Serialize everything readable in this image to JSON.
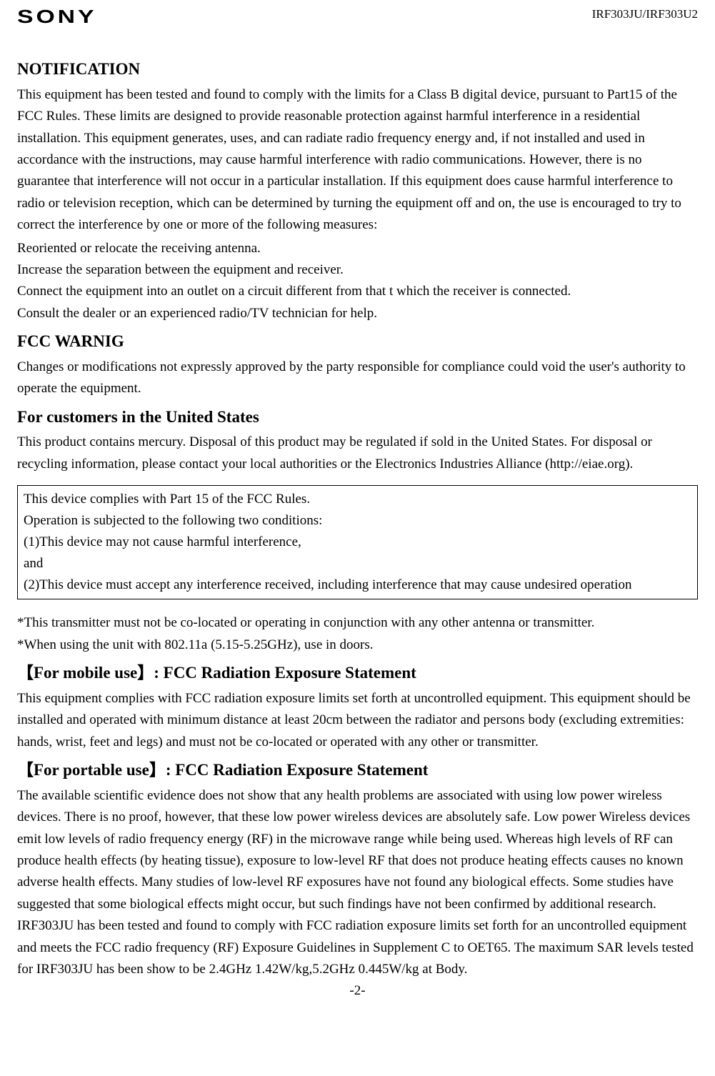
{
  "header": {
    "logo": "SONY",
    "model": "IRF303JU/IRF303U2"
  },
  "sections": {
    "notification": {
      "heading": "NOTIFICATION",
      "body1": "This equipment has been tested and found to comply with the limits for a Class B digital device, pursuant to Part15 of the FCC Rules. These limits are designed to provide reasonable protection against harmful interference in a residential installation. This equipment generates, uses, and can radiate radio frequency energy and, if not installed and used in accordance with the instructions, may cause harmful interference with radio communications. However, there is no guarantee that interference will not occur in a particular installation. If this equipment does cause harmful interference to radio or television reception, which can be determined by turning the equipment off and on, the use is encouraged to try to correct the interference by one or more of the following measures:",
      "m1": "Reoriented or relocate the receiving antenna.",
      "m2": "Increase the separation between the equipment and receiver.",
      "m3": "Connect the equipment into an outlet on a circuit different from that t which the receiver is connected.",
      "m4": "Consult the dealer or an experienced radio/TV technician for help."
    },
    "fcc_warnig": {
      "heading": "FCC WARNIG",
      "body": "Changes or modifications not expressly approved by the party responsible for compliance could void the user's authority to operate the equipment."
    },
    "customers_us": {
      "heading": "For customers in the United States",
      "body": "This product contains mercury. Disposal of this product may be regulated if sold in the United States. For disposal or recycling information, please contact your local authorities or the Electronics Industries Alliance (http://eiae.org)."
    },
    "box": {
      "l1": "This device complies with Part 15 of the FCC Rules.",
      "l2": "Operation is subjected to the following two conditions:",
      "l3": "(1)This device may not cause harmful interference,",
      "l4": "and",
      "l5": "(2)This device must accept any interference received, including interference that may cause undesired operation"
    },
    "notes": {
      "n1": "*This transmitter must not be co-located or operating in conjunction with any other antenna or transmitter.",
      "n2": "*When using the unit with 802.11a (5.15-5.25GHz), use in doors."
    },
    "mobile": {
      "heading": "【For mobile use】: FCC Radiation Exposure Statement",
      "body": "This equipment complies with FCC radiation exposure limits set forth at uncontrolled equipment. This equipment should be installed and operated with minimum distance at least 20cm between the radiator and persons body (excluding extremities: hands, wrist, feet and legs) and must not be co-located or operated with any other or transmitter."
    },
    "portable": {
      "heading": "【For portable use】: FCC Radiation Exposure Statement",
      "body": "The available scientific evidence does not show that any health problems are associated with using low power wireless devices. There is no proof, however, that these low power wireless devices are absolutely safe. Low power Wireless devices emit low levels of radio frequency energy (RF) in the microwave range while being used.  Whereas high levels of RF can produce health effects (by heating tissue), exposure to low-level RF that does not produce heating effects causes no known adverse health effects. Many studies of low-level RF exposures have not found any biological effects. Some studies have suggested that some biological effects might occur, but such findings have not been confirmed by additional research. IRF303JU has been tested and found to comply with FCC radiation exposure limits set forth for an uncontrolled equipment and meets the FCC radio frequency (RF) Exposure Guidelines in Supplement C to OET65. The maximum SAR levels tested for IRF303JU has been show to be 2.4GHz 1.42W/kg,5.2GHz 0.445W/kg at Body."
    }
  },
  "page_number": "-2-"
}
